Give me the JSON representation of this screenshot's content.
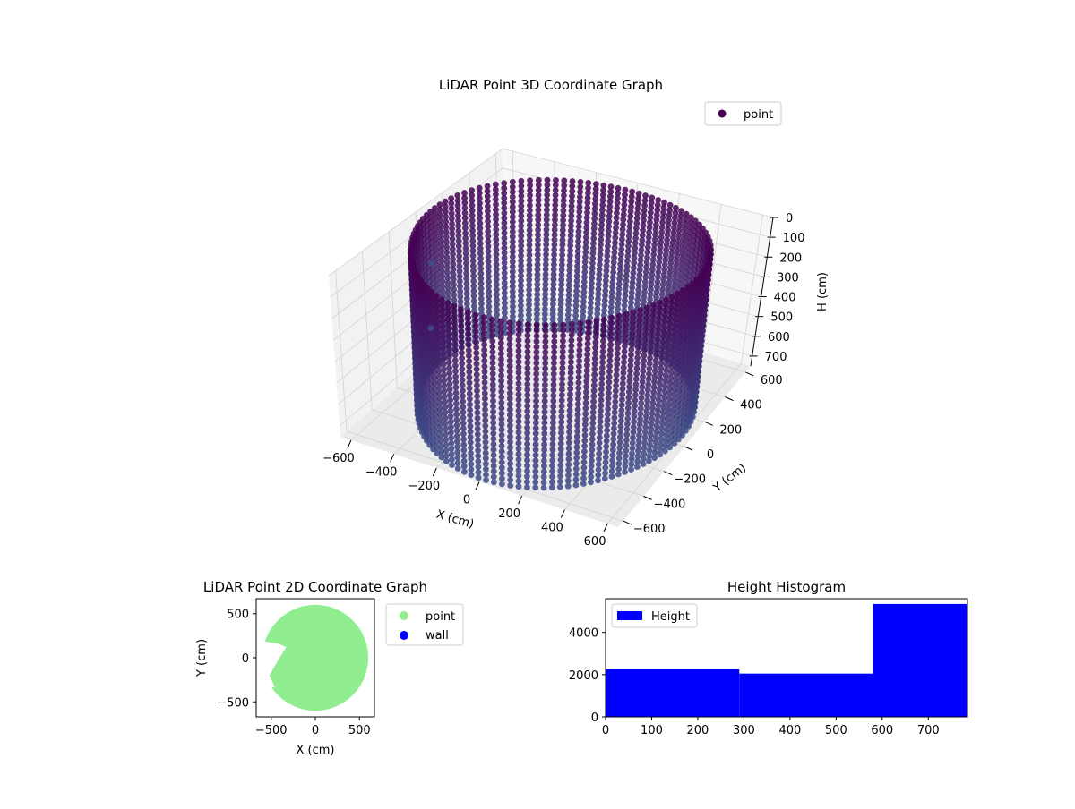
{
  "colors": {
    "point_dark": "#440154",
    "point_mid": "#3b528b",
    "point_2d": "#90ee90",
    "wall": "#0000ff",
    "hist_bar": "#0000ff",
    "pane": "#f2f2f2",
    "grid": "#d3d3d3"
  },
  "chart_data": [
    {
      "type": "scatter",
      "projection": "3d",
      "title": "LiDAR Point 3D Coordinate Graph",
      "xlabel": "X (cm)",
      "ylabel": "Y (cm)",
      "zlabel": "H (cm)",
      "xticks": [
        "−600",
        "−400",
        "−200",
        "0",
        "200",
        "400",
        "600"
      ],
      "yticks": [
        "−600",
        "−400",
        "−200",
        "0",
        "200",
        "400",
        "600"
      ],
      "zticks": [
        "0",
        "100",
        "200",
        "300",
        "400",
        "500",
        "600",
        "700"
      ],
      "xlim": [
        -650,
        650
      ],
      "ylim": [
        -650,
        650
      ],
      "zlim": [
        750,
        0
      ],
      "z_axis_inverted": true,
      "grid": true,
      "legend": {
        "placement": "upper-right",
        "entries": [
          "point"
        ]
      },
      "series": [
        {
          "name": "point",
          "shape": "cylindrical wall scan",
          "center": [
            0,
            0
          ],
          "radius": 600,
          "height_range": [
            0,
            750
          ],
          "outliers": [
            {
              "x": -650,
              "y": 100,
              "h": 300
            },
            {
              "x": -600,
              "y": 0,
              "h": 550
            }
          ]
        }
      ]
    },
    {
      "type": "scatter",
      "title": "LiDAR Point 2D Coordinate Graph",
      "xlabel": "X (cm)",
      "ylabel": "Y (cm)",
      "xticks": [
        "−500",
        "0",
        "500"
      ],
      "yticks": [
        "−500",
        "0",
        "500"
      ],
      "xlim": [
        -670,
        670
      ],
      "ylim": [
        -670,
        670
      ],
      "legend": {
        "placement": "outside-right",
        "entries": [
          "point",
          "wall"
        ]
      },
      "series": [
        {
          "name": "point",
          "shape": "filled disc",
          "center": [
            0,
            0
          ],
          "radius": 600
        },
        {
          "name": "wall",
          "points": []
        }
      ]
    },
    {
      "type": "bar",
      "title": "Height Histogram",
      "xticks": [
        "0",
        "100",
        "200",
        "300",
        "400",
        "500",
        "600",
        "700"
      ],
      "yticks": [
        "0",
        "2000",
        "4000"
      ],
      "xlim": [
        0,
        785
      ],
      "ylim": [
        0,
        5600
      ],
      "legend": {
        "placement": "upper-left",
        "entries": [
          "Height"
        ]
      },
      "series": [
        {
          "name": "Height",
          "bins": [
            [
              0,
              290
            ],
            [
              290,
              580
            ],
            [
              580,
              785
            ]
          ],
          "values": [
            2250,
            2050,
            5350
          ]
        }
      ]
    }
  ]
}
